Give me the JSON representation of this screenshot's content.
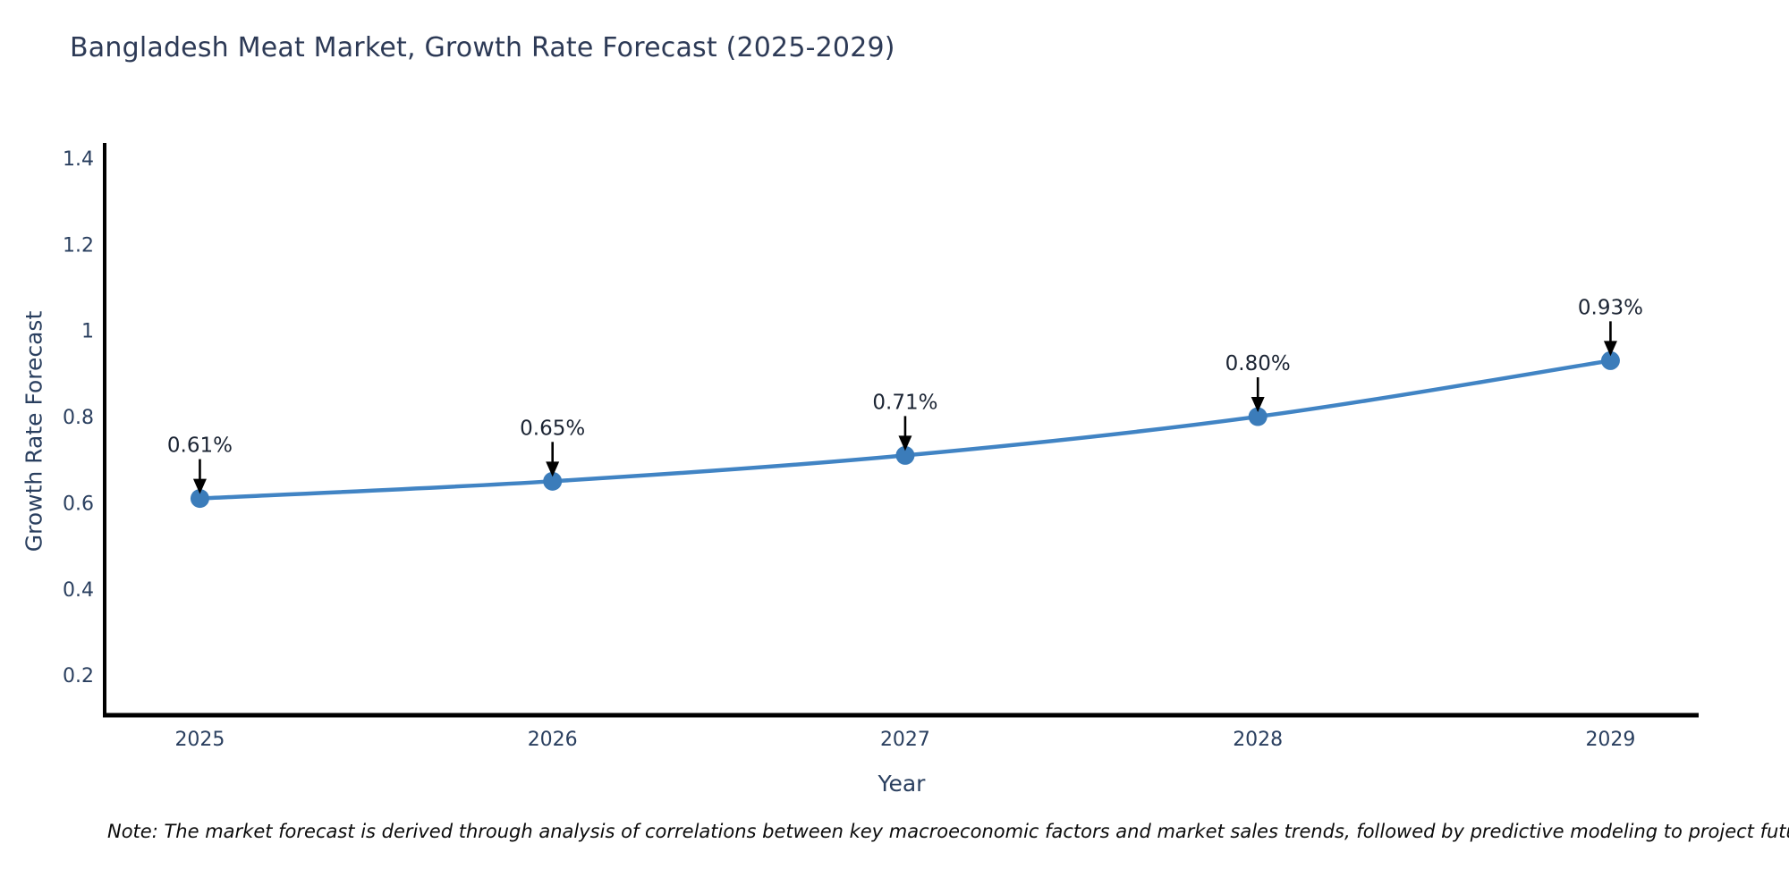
{
  "chart": {
    "title": "Bangladesh Meat Market, Growth Rate Forecast (2025-2029)",
    "xlabel": "Year",
    "ylabel": "Growth Rate Forecast",
    "note": "Note: The market forecast is derived through analysis of correlations between key macroeconomic factors and market sales trends, followed by predictive modeling to project future sales"
  },
  "chart_data": {
    "type": "line",
    "title": "Bangladesh Meat Market, Growth Rate Forecast (2025-2029)",
    "xlabel": "Year",
    "ylabel": "Growth Rate Forecast",
    "x": [
      2025,
      2026,
      2027,
      2028,
      2029
    ],
    "values": [
      0.61,
      0.65,
      0.71,
      0.8,
      0.93
    ],
    "point_labels": [
      "0.61%",
      "0.65%",
      "0.71%",
      "0.80%",
      "0.93%"
    ],
    "xtick_labels": [
      "2025",
      "2026",
      "2027",
      "2028",
      "2029"
    ],
    "ytick_values": [
      0.2,
      0.4,
      0.6,
      0.8,
      1,
      1.2,
      1.4
    ],
    "ytick_labels": [
      "0.2",
      "0.4",
      "0.6",
      "0.8",
      "1",
      "1.2",
      "1.4"
    ],
    "xlim": [
      2024.73,
      2029.25
    ],
    "ylim": [
      0.107,
      1.435
    ],
    "grid": false,
    "legend": "none",
    "line_shape": "spline",
    "colors": {
      "line": "#4184c4",
      "marker": "#3b7cba",
      "axis": "#000000",
      "tick_text": "#2a3f5f",
      "annotation_text": "#1b2433",
      "annotation_arrow": "#000000",
      "title_text": "#2d3a56",
      "background": "#ffffff"
    }
  }
}
